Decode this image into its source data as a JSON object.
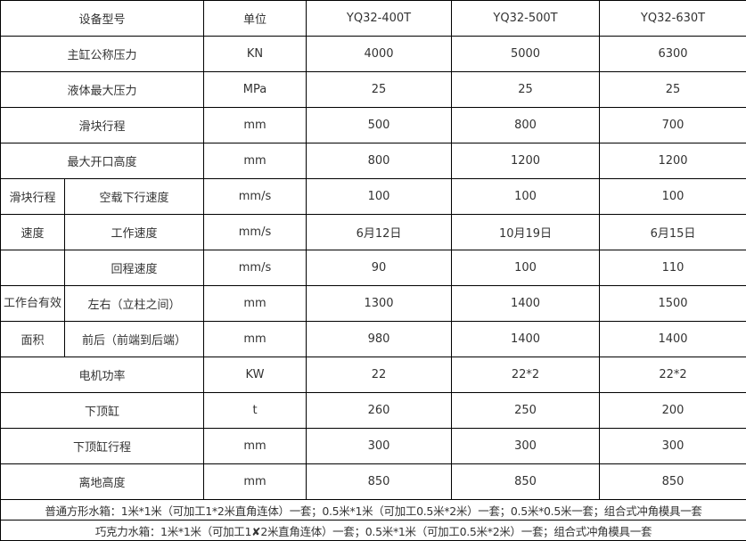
{
  "header": {
    "label": "设备型号",
    "unit": "单位",
    "models": [
      "YQ32-400T",
      "YQ32-500T",
      "YQ32-630T"
    ]
  },
  "rows": [
    {
      "label": "主缸公称压力",
      "unit": "KN",
      "values": [
        "4000",
        "5000",
        "6300"
      ]
    },
    {
      "label": "液体最大压力",
      "unit": "MPa",
      "values": [
        "25",
        "25",
        "25"
      ]
    },
    {
      "label": "滑块行程",
      "unit": "mm",
      "values": [
        "500",
        "800",
        "700"
      ]
    },
    {
      "label": "最大开口高度",
      "unit": "mm",
      "values": [
        "800",
        "1200",
        "1200"
      ]
    },
    {
      "group": "滑块行程",
      "label": "空载下行速度",
      "unit": "mm/s",
      "values": [
        "100",
        "100",
        "100"
      ]
    },
    {
      "group": "速度",
      "label": "工作速度",
      "unit": "mm/s",
      "values": [
        "6月12日",
        "10月19日",
        "6月15日"
      ]
    },
    {
      "group": "",
      "label": "回程速度",
      "unit": "mm/s",
      "values": [
        "90",
        "100",
        "110"
      ]
    },
    {
      "group": "工作台有效",
      "label": "左右（立柱之间）",
      "unit": "mm",
      "values": [
        "1300",
        "1400",
        "1500"
      ]
    },
    {
      "group": "面积",
      "label": "前后（前端到后端）",
      "unit": "mm",
      "values": [
        "980",
        "1400",
        "1400"
      ]
    },
    {
      "label": "电机功率",
      "unit": "KW",
      "values": [
        "22",
        "22*2",
        "22*2"
      ]
    },
    {
      "label": "下顶缸",
      "unit": "t",
      "values": [
        "260",
        "250",
        "200"
      ]
    },
    {
      "label": "下顶缸行程",
      "unit": "mm",
      "values": [
        "300",
        "300",
        "300"
      ]
    },
    {
      "label": "离地高度",
      "unit": "mm",
      "values": [
        "850",
        "850",
        "850"
      ]
    }
  ],
  "footer": [
    "普通方形水箱：1米*1米（可加工1*2米直角连体）一套；0.5米*1米（可加工0.5米*2米）一套；0.5米*0.5米一套；组合式冲角模具一套",
    "巧克力水箱：1米*1米（可加工1✘2米直角连体）一套；0.5米*1米（可加工0.5米*2米）一套；组合式冲角模具一套"
  ]
}
